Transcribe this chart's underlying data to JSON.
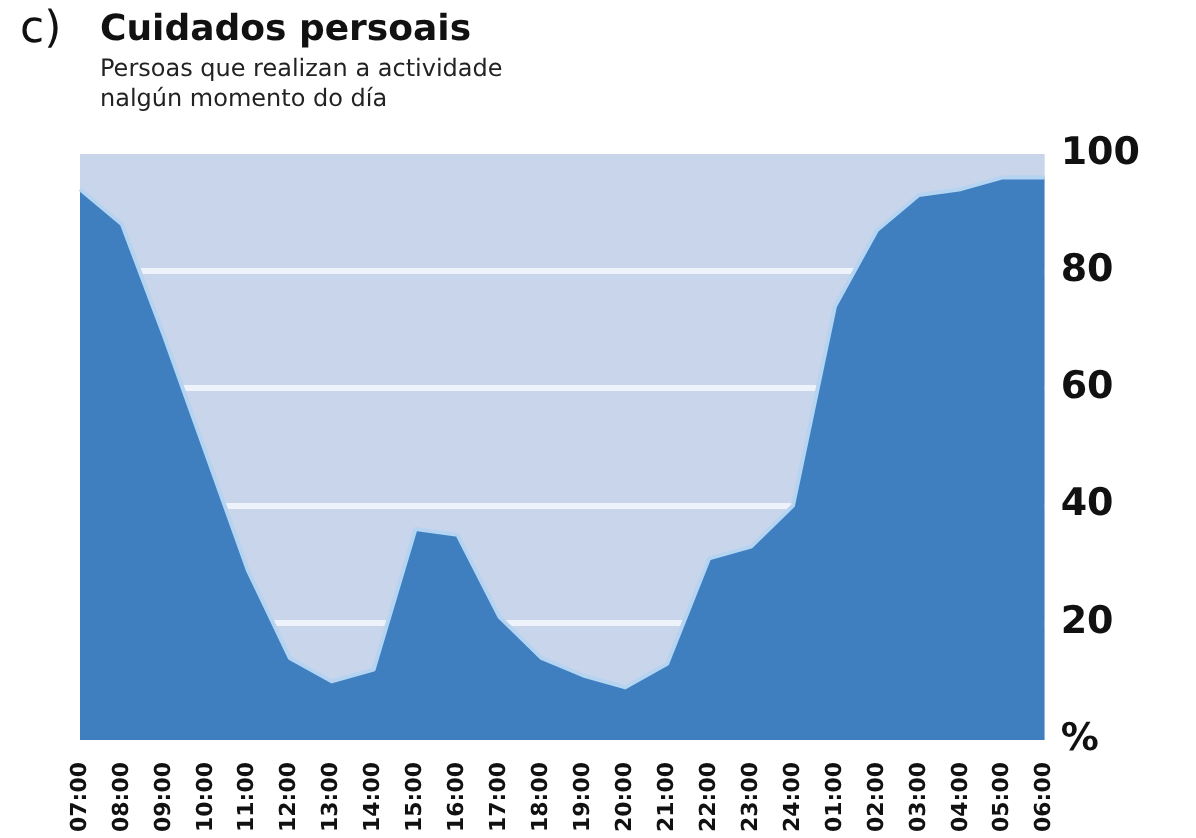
{
  "chart_data": {
    "type": "area",
    "title": "Cuidados persoais",
    "subtitle": "Persoas que realizan a actividade\nnalgún momento do día",
    "annotations": [
      "c)"
    ],
    "categories": [
      "07:00",
      "08:00",
      "09:00",
      "10:00",
      "11:00",
      "12:00",
      "13:00",
      "14:00",
      "15:00",
      "16:00",
      "17:00",
      "18:00",
      "19:00",
      "20:00",
      "21:00",
      "22:00",
      "23:00",
      "24:00",
      "01:00",
      "02:00",
      "03:00",
      "04:00",
      "05:00",
      "06:00"
    ],
    "series": [
      {
        "color": "#3f7fc0",
        "values": [
          94,
          88,
          69,
          49,
          29,
          14,
          10,
          12,
          36,
          35,
          21,
          14,
          11,
          9,
          13,
          31,
          33,
          40,
          74,
          87,
          93,
          94,
          96,
          96
        ]
      }
    ],
    "ylim": [
      0,
      100
    ],
    "yticks": [
      {
        "value": 0,
        "label": "%"
      },
      20,
      40,
      60,
      80,
      100
    ],
    "grid": "y",
    "legend": false
  }
}
